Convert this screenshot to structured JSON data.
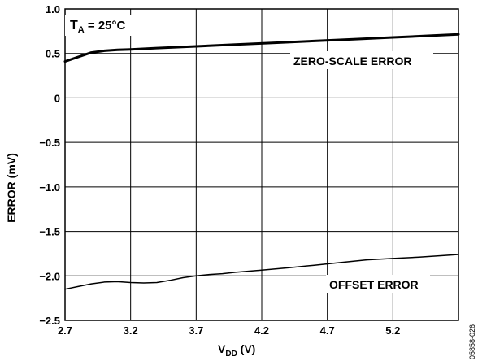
{
  "chart_data": {
    "type": "line",
    "xlabel": {
      "main": "V",
      "sub": "DD",
      "unit": " (V)"
    },
    "ylabel": "ERROR (mV)",
    "xlim": [
      2.7,
      5.7
    ],
    "ylim": [
      -2.5,
      1.0
    ],
    "x_ticks": [
      "2.7",
      "3.2",
      "3.7",
      "4.2",
      "4.7",
      "5.2"
    ],
    "x_tick_values": [
      2.7,
      3.2,
      3.7,
      4.2,
      4.7,
      5.2
    ],
    "y_ticks": [
      "1.0",
      "0.5",
      "0",
      "−0.5",
      "−1.0",
      "−1.5",
      "−2.0",
      "−2.5"
    ],
    "y_tick_values": [
      1.0,
      0.5,
      0,
      -0.5,
      -1.0,
      -1.5,
      -2.0,
      -2.5
    ],
    "grid": true,
    "condition": {
      "main": "T",
      "sub": "A",
      "rest": " = 25°C"
    },
    "figure_code": "05858-026",
    "series": [
      {
        "name": "ZERO-SCALE ERROR",
        "x": [
          2.7,
          2.8,
          2.9,
          3.0,
          3.1,
          3.2,
          3.4,
          3.7,
          4.0,
          4.3,
          4.6,
          4.9,
          5.2,
          5.5,
          5.7
        ],
        "y": [
          0.41,
          0.46,
          0.51,
          0.53,
          0.54,
          0.545,
          0.56,
          0.58,
          0.6,
          0.62,
          0.64,
          0.66,
          0.68,
          0.7,
          0.715
        ],
        "stroke": "#000000",
        "width": 3
      },
      {
        "name": "OFFSET ERROR",
        "x": [
          2.7,
          2.8,
          2.9,
          3.0,
          3.1,
          3.2,
          3.3,
          3.4,
          3.5,
          3.6,
          3.7,
          3.8,
          3.9,
          4.0,
          4.2,
          4.4,
          4.6,
          4.8,
          5.0,
          5.2,
          5.4,
          5.6,
          5.7
        ],
        "y": [
          -2.15,
          -2.12,
          -2.09,
          -2.07,
          -2.065,
          -2.075,
          -2.08,
          -2.075,
          -2.05,
          -2.02,
          -2.0,
          -1.985,
          -1.975,
          -1.96,
          -1.935,
          -1.91,
          -1.88,
          -1.85,
          -1.82,
          -1.805,
          -1.79,
          -1.77,
          -1.76
        ],
        "stroke": "#000000",
        "width": 1.5
      }
    ],
    "annotations": [
      {
        "text": "ZERO-SCALE ERROR",
        "series": 0
      },
      {
        "text": "OFFSET ERROR",
        "series": 1
      }
    ]
  }
}
